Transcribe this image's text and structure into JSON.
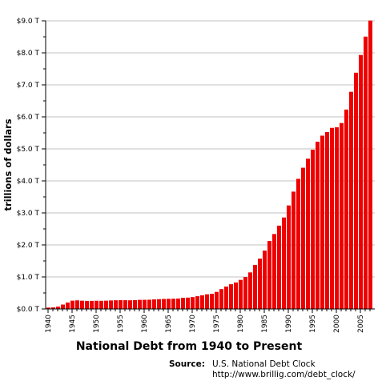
{
  "chart_data": {
    "type": "bar",
    "title": "National Debt from 1940 to Present",
    "ylabel": "trillions of dollars",
    "xlabel": "",
    "x_start": 1940,
    "x_end": 2007,
    "x_tick_labels": [
      "1940",
      "1945",
      "1950",
      "1955",
      "1960",
      "1965",
      "1970",
      "1975",
      "1980",
      "1985",
      "1990",
      "1995",
      "2000",
      "2005"
    ],
    "ylim": [
      0,
      9
    ],
    "y_tick_labels": [
      "$0.0 T",
      "$1.0 T",
      "$2.0 T",
      "$3.0 T",
      "$4.0 T",
      "$5.0 T",
      "$6.0 T",
      "$7.0 T",
      "$8.0 T",
      "$9.0 T"
    ],
    "grid": true,
    "bar_color": "#ee0000",
    "years": [
      1940,
      1941,
      1942,
      1943,
      1944,
      1945,
      1946,
      1947,
      1948,
      1949,
      1950,
      1951,
      1952,
      1953,
      1954,
      1955,
      1956,
      1957,
      1958,
      1959,
      1960,
      1961,
      1962,
      1963,
      1964,
      1965,
      1966,
      1967,
      1968,
      1969,
      1970,
      1971,
      1972,
      1973,
      1974,
      1975,
      1976,
      1977,
      1978,
      1979,
      1980,
      1981,
      1982,
      1983,
      1984,
      1985,
      1986,
      1987,
      1988,
      1989,
      1990,
      1991,
      1992,
      1993,
      1994,
      1995,
      1996,
      1997,
      1998,
      1999,
      2000,
      2001,
      2002,
      2003,
      2004,
      2005,
      2006,
      2007
    ],
    "values": [
      0.043,
      0.049,
      0.072,
      0.137,
      0.201,
      0.259,
      0.269,
      0.258,
      0.252,
      0.253,
      0.257,
      0.255,
      0.259,
      0.266,
      0.271,
      0.274,
      0.273,
      0.271,
      0.276,
      0.285,
      0.286,
      0.289,
      0.298,
      0.306,
      0.312,
      0.317,
      0.32,
      0.326,
      0.348,
      0.354,
      0.371,
      0.398,
      0.427,
      0.458,
      0.475,
      0.533,
      0.62,
      0.699,
      0.772,
      0.827,
      0.908,
      0.998,
      1.142,
      1.377,
      1.572,
      1.823,
      2.125,
      2.34,
      2.602,
      2.857,
      3.233,
      3.665,
      4.065,
      4.411,
      4.693,
      4.974,
      5.225,
      5.413,
      5.526,
      5.656,
      5.674,
      5.807,
      6.228,
      6.783,
      7.379,
      7.933,
      8.507,
      9.008
    ],
    "source_label": "Source:",
    "source_name": "U.S. National Debt Clock",
    "source_url": "http://www.brillig.com/debt_clock/"
  }
}
